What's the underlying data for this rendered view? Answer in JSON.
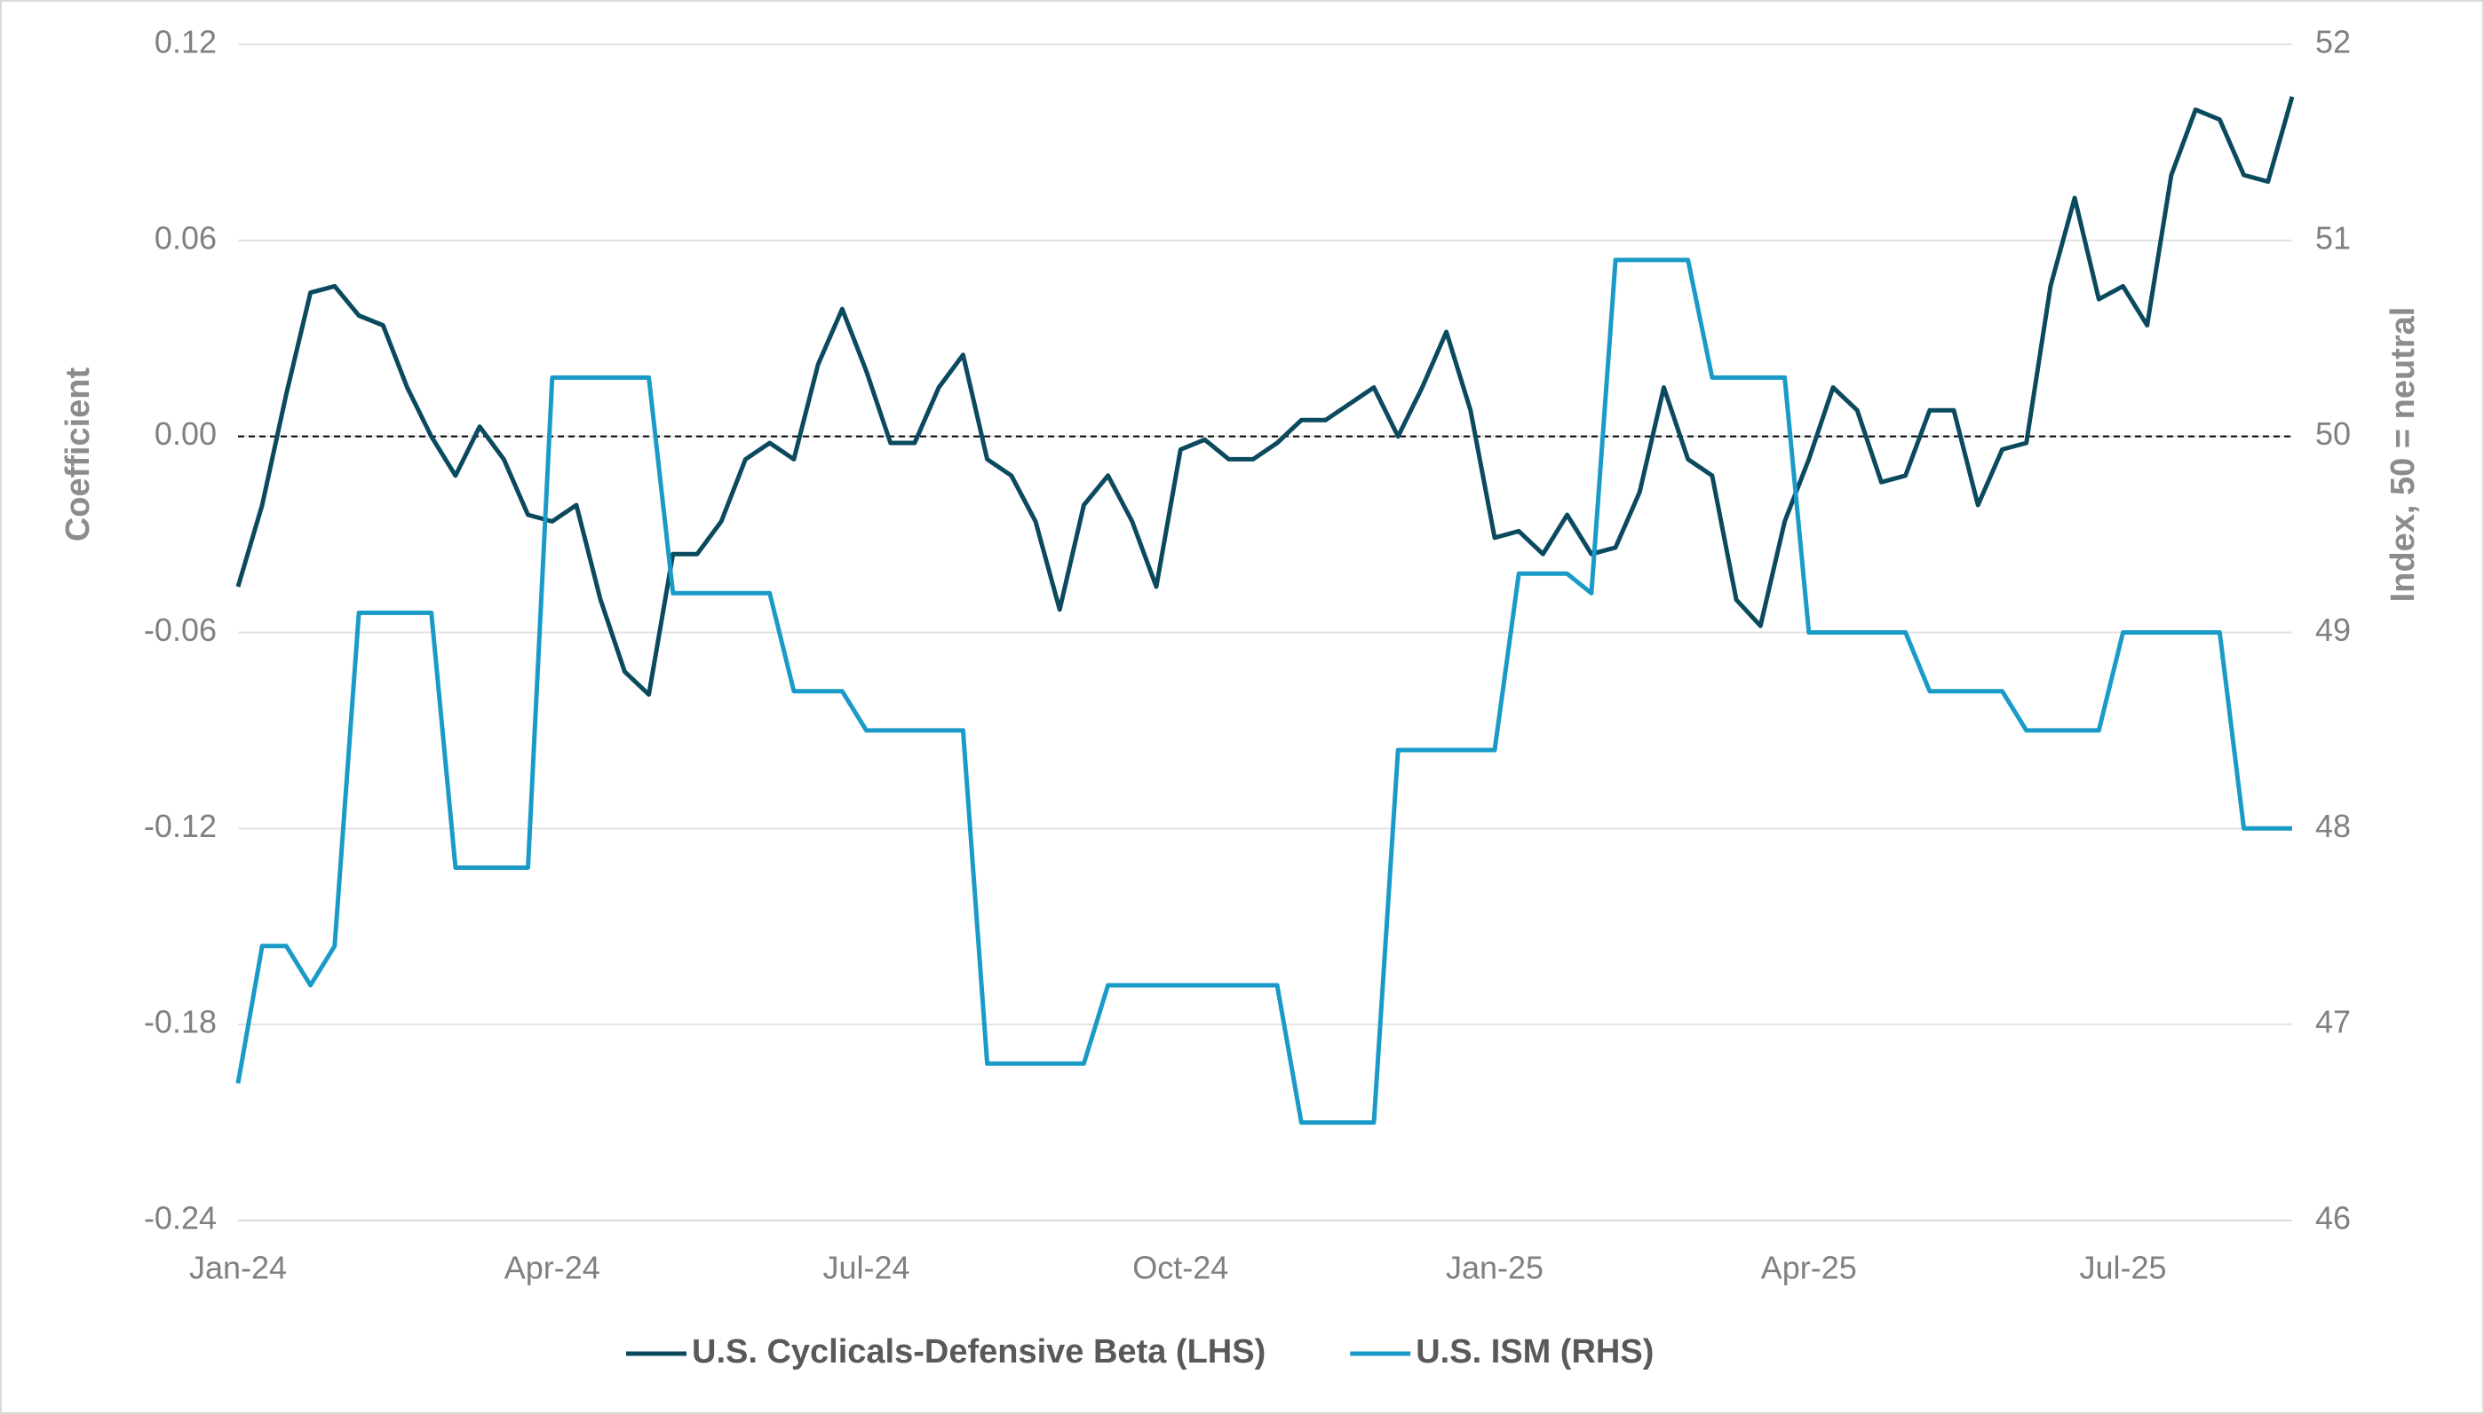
{
  "chart_data": {
    "type": "line",
    "categories": [
      "Jan-24",
      null,
      null,
      null,
      null,
      null,
      null,
      null,
      null,
      null,
      null,
      null,
      null,
      "Apr-24",
      null,
      null,
      null,
      null,
      null,
      null,
      null,
      null,
      null,
      null,
      null,
      null,
      "Jul-24",
      null,
      null,
      null,
      null,
      null,
      null,
      null,
      null,
      null,
      null,
      null,
      null,
      "Oct-24",
      null,
      null,
      null,
      null,
      null,
      null,
      null,
      null,
      null,
      null,
      null,
      null,
      "Jan-25",
      null,
      null,
      null,
      null,
      null,
      null,
      null,
      null,
      null,
      null,
      null,
      null,
      "Apr-25",
      null,
      null,
      null,
      null,
      null,
      null,
      null,
      null,
      null,
      null,
      null,
      null,
      "Jul-25",
      null,
      null,
      null,
      null,
      null,
      null,
      null
    ],
    "y_label": "Coefficient",
    "y2_label": "Index, 50 = neutral",
    "ylim": [
      -0.24,
      0.12
    ],
    "yticks": [
      -0.24,
      -0.18,
      -0.12,
      -0.06,
      {
        "value": 0,
        "label": "0.00"
      },
      0.06,
      0.12
    ],
    "y2lim": [
      46,
      52
    ],
    "y2ticks": [
      46,
      47,
      48,
      49,
      50,
      51,
      52
    ],
    "grid": true,
    "zero_line": true,
    "legend": "bottom",
    "series": [
      {
        "name": "U.S. Cyclicals-Defensive Beta (LHS)",
        "color": "#0b4a5e",
        "values": [
          -0.046,
          -0.021,
          0.013,
          0.044,
          0.046,
          0.037,
          0.034,
          0.015,
          0.0,
          -0.012,
          0.003,
          -0.007,
          -0.024,
          -0.026,
          -0.021,
          -0.05,
          -0.072,
          -0.079,
          -0.036,
          -0.036,
          -0.026,
          -0.007,
          -0.002,
          -0.007,
          0.022,
          0.039,
          0.02,
          -0.002,
          -0.002,
          0.015,
          0.025,
          -0.007,
          -0.012,
          -0.026,
          -0.053,
          -0.021,
          -0.012,
          -0.026,
          -0.046,
          -0.004,
          -0.001,
          -0.007,
          -0.007,
          -0.002,
          0.005,
          0.005,
          0.01,
          0.015,
          0.0,
          0.015,
          0.032,
          0.008,
          -0.031,
          -0.029,
          -0.036,
          -0.024,
          -0.036,
          -0.034,
          -0.017,
          0.015,
          -0.007,
          -0.012,
          -0.05,
          -0.058,
          -0.026,
          -0.007,
          0.015,
          0.008,
          -0.014,
          -0.012,
          0.008,
          0.008,
          -0.021,
          -0.004,
          -0.002,
          0.046,
          0.073,
          0.042,
          0.046,
          0.034,
          0.08,
          0.1,
          0.097,
          0.08,
          0.078,
          0.104
        ]
      },
      {
        "name": "U.S. ISM (RHS)",
        "color": "#1a9bc7",
        "axis": "y2",
        "values": [
          46.7,
          47.4,
          47.4,
          47.2,
          47.4,
          49.1,
          49.1,
          49.1,
          49.1,
          47.8,
          47.8,
          47.8,
          47.8,
          50.3,
          50.3,
          50.3,
          50.3,
          50.3,
          49.2,
          49.2,
          49.2,
          49.2,
          49.2,
          48.7,
          48.7,
          48.7,
          48.5,
          48.5,
          48.5,
          48.5,
          48.5,
          46.8,
          46.8,
          46.8,
          46.8,
          46.8,
          47.2,
          47.2,
          47.2,
          47.2,
          47.2,
          47.2,
          47.2,
          47.2,
          46.5,
          46.5,
          46.5,
          46.5,
          48.4,
          48.4,
          48.4,
          48.4,
          48.4,
          49.3,
          49.3,
          49.3,
          49.2,
          50.9,
          50.9,
          50.9,
          50.9,
          50.3,
          50.3,
          50.3,
          50.3,
          49.0,
          49.0,
          49.0,
          49.0,
          49.0,
          48.7,
          48.7,
          48.7,
          48.7,
          48.5,
          48.5,
          48.5,
          48.5,
          49.0,
          49.0,
          49.0,
          49.0,
          49.0,
          48.0,
          48.0,
          48.0
        ]
      }
    ]
  }
}
